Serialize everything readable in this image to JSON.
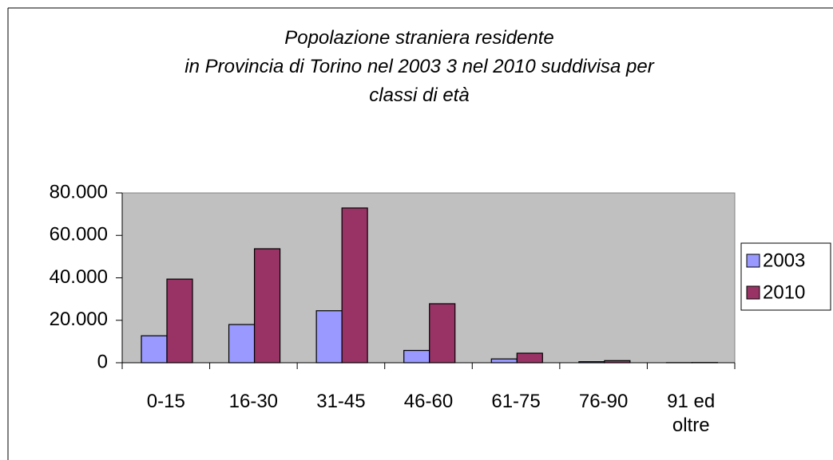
{
  "chart_data": {
    "type": "bar",
    "title": "Popolazione straniera residente\nin Provincia di Torino nel 2003 3 nel 2010 suddivisa per\nclassi di età",
    "categories": [
      "0-15",
      "16-30",
      "31-45",
      "46-60",
      "61-75",
      "76-90",
      "91 ed oltre"
    ],
    "series": [
      {
        "name": "2003",
        "color": "#9999ff",
        "values": [
          12700,
          18000,
          24500,
          5800,
          1800,
          500,
          50
        ]
      },
      {
        "name": "2010",
        "color": "#993366",
        "values": [
          39400,
          53700,
          72900,
          27800,
          4500,
          1000,
          100
        ]
      }
    ],
    "ylim": [
      0,
      80000
    ],
    "yticks": [
      0,
      {
        "value": 20000,
        "label": "20.000"
      },
      {
        "value": 40000,
        "label": "40.000"
      },
      {
        "value": 60000,
        "label": "60.000"
      },
      {
        "value": 80000,
        "label": "80.000"
      }
    ],
    "legend": "right",
    "plot_background": "#c0c0c0"
  }
}
